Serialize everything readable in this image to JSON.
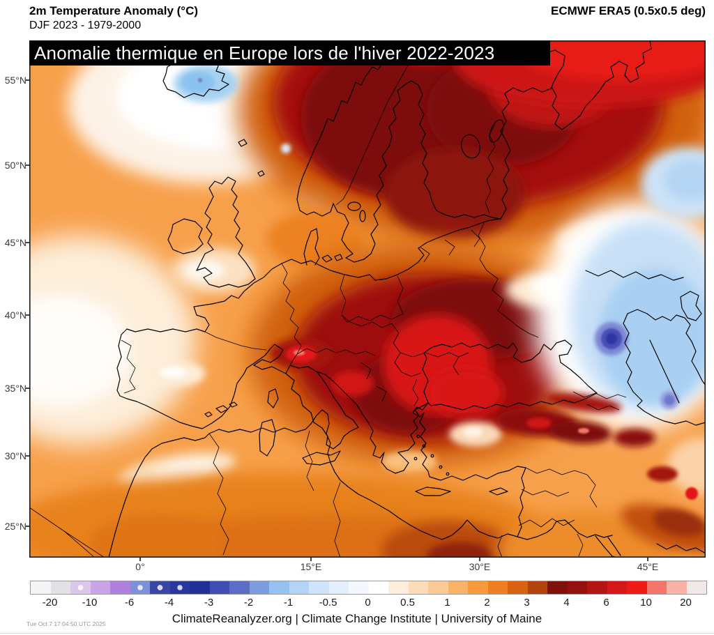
{
  "header": {
    "title": "2m Temperature Anomaly (°C)",
    "subtitle": "DJF 2023 - 1979-2000",
    "dataset": "ECMWF ERA5 (0.5x0.5 deg)"
  },
  "overlay_banner": {
    "text": "Anomalie thermique en Europe lors de l'hiver 2022-2023",
    "background": "#000000",
    "color": "#ffffff"
  },
  "map": {
    "lat_labels": [
      "55°N",
      "50°N",
      "45°N",
      "40°N",
      "35°N",
      "30°N",
      "25°N"
    ],
    "lon_labels": [
      "0°",
      "15°E",
      "30°E",
      "45°E"
    ]
  },
  "colorbar": {
    "unit": "°C",
    "tick_labels": [
      "-20",
      "-10",
      "-6",
      "-4",
      "-3",
      "-2",
      "-1",
      "-0.5",
      "0",
      "0.5",
      "1",
      "2",
      "3",
      "4",
      "6",
      "10",
      "20"
    ],
    "cells": [
      {
        "color": "#f6f3f6"
      },
      {
        "color": "#e4e1e6"
      },
      {
        "color": "#dcc7ec",
        "pattern": true
      },
      {
        "color": "#c9a5e7"
      },
      {
        "color": "#ad80dd"
      },
      {
        "color": "#7d90da",
        "pattern": true
      },
      {
        "color": "#3847a3",
        "pattern": true
      },
      {
        "color": "#2a389d",
        "pattern": true
      },
      {
        "color": "#212f98"
      },
      {
        "color": "#3e4eb1"
      },
      {
        "color": "#5b6dc4"
      },
      {
        "color": "#7e9be0"
      },
      {
        "color": "#97c2f0"
      },
      {
        "color": "#b3d4f6"
      },
      {
        "color": "#cfe4fa"
      },
      {
        "color": "#e3effc"
      },
      {
        "color": "#f2f8fe"
      },
      {
        "color": "#ffffff"
      },
      {
        "color": "#fdeede"
      },
      {
        "color": "#fcdcbb"
      },
      {
        "color": "#fbca95"
      },
      {
        "color": "#f9b369"
      },
      {
        "color": "#f79b3d"
      },
      {
        "color": "#ee7e1e"
      },
      {
        "color": "#da6112"
      },
      {
        "color": "#b2430e"
      },
      {
        "color": "#7f1208"
      },
      {
        "color": "#941110"
      },
      {
        "color": "#b31414"
      },
      {
        "color": "#d51818"
      },
      {
        "color": "#ee1b15"
      },
      {
        "color": "#f2766a"
      },
      {
        "color": "#f8b3a6"
      },
      {
        "color": "#f0e9e7"
      }
    ]
  },
  "footer": {
    "credit": "ClimateReanalyzer.org | Climate Change Institute | University of Maine",
    "timestamp": "Tue Oct 7 17:04:50 UTC 2025"
  },
  "chart_data": {
    "type": "heatmap",
    "title": "2m Temperature Anomaly (°C)",
    "subtitle": "DJF 2023 - 1979-2000",
    "dataset": "ECMWF ERA5 (0.5x0.5 deg)",
    "unit": "°C",
    "scale_ticks": [
      -20,
      -10,
      -6,
      -4,
      -3,
      -2,
      -1,
      -0.5,
      0,
      0.5,
      1,
      2,
      3,
      4,
      6,
      10,
      20
    ],
    "lat_ticks": [
      "55°N",
      "50°N",
      "45°N",
      "40°N",
      "35°N",
      "30°N",
      "25°N"
    ],
    "lon_ticks": [
      "0°",
      "15°E",
      "30°E",
      "45°E"
    ]
  }
}
